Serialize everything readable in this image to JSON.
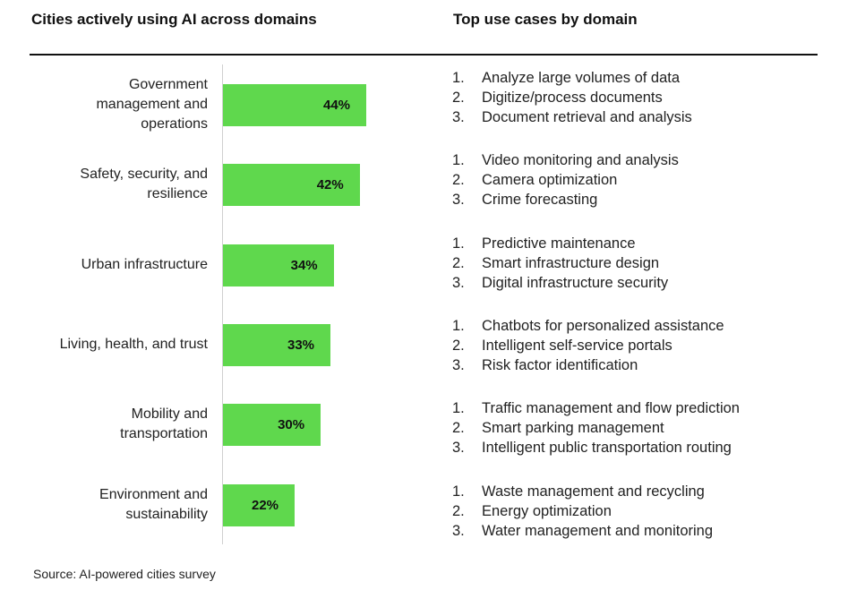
{
  "header": {
    "left_title": "Cities actively using AI across domains",
    "right_title": "Top use cases by domain"
  },
  "chart_data": {
    "type": "bar",
    "orientation": "horizontal",
    "title": "Cities actively using AI across domains",
    "categories": [
      "Government\nmanagement and\noperations",
      "Safety, security, and\nresilience",
      "Urban infrastructure",
      "Living, health, and trust",
      "Mobility and\ntransportation",
      "Environment and\nsustainability"
    ],
    "values": [
      44,
      42,
      34,
      33,
      30,
      22
    ],
    "value_labels": [
      "44%",
      "42%",
      "34%",
      "33%",
      "30%",
      "22%"
    ],
    "unit": "%",
    "xlim": [
      0,
      100
    ],
    "bar_color": "#5fd84d",
    "grid": false,
    "legend": "none"
  },
  "use_cases": [
    {
      "items": [
        {
          "num": "1.",
          "text": "Analyze large volumes of data"
        },
        {
          "num": "2.",
          "text": "Digitize/process documents"
        },
        {
          "num": "3.",
          "text": "Document retrieval and analysis"
        }
      ]
    },
    {
      "items": [
        {
          "num": "1.",
          "text": "Video monitoring and analysis"
        },
        {
          "num": "2.",
          "text": "Camera optimization"
        },
        {
          "num": "3.",
          "text": "Crime forecasting"
        }
      ]
    },
    {
      "items": [
        {
          "num": "1.",
          "text": "Predictive maintenance"
        },
        {
          "num": "2.",
          "text": "Smart infrastructure design"
        },
        {
          "num": "3.",
          "text": "Digital infrastructure security"
        }
      ]
    },
    {
      "items": [
        {
          "num": "1.",
          "text": "Chatbots for personalized assistance"
        },
        {
          "num": "2.",
          "text": "Intelligent self-service portals"
        },
        {
          "num": "3.",
          "text": "Risk factor identification"
        }
      ]
    },
    {
      "items": [
        {
          "num": "1.",
          "text": "Traffic management and flow prediction"
        },
        {
          "num": "2.",
          "text": "Smart parking management"
        },
        {
          "num": "3.",
          "text": "Intelligent public transportation routing"
        }
      ]
    },
    {
      "items": [
        {
          "num": "1.",
          "text": "Waste management and recycling"
        },
        {
          "num": "2.",
          "text": "Energy optimization"
        },
        {
          "num": "3.",
          "text": "Water management and monitoring"
        }
      ]
    }
  ],
  "footer": {
    "source": "Source: AI-powered cities survey"
  }
}
